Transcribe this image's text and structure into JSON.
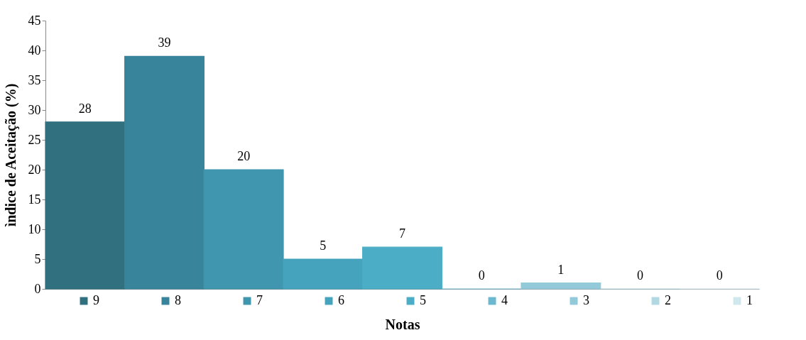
{
  "chart_data": {
    "type": "bar",
    "xlabel": "Notas",
    "ylabel": "ìndice de Aceitação (%)",
    "categories": [
      null,
      null,
      null,
      null,
      null,
      null,
      null,
      null,
      null
    ],
    "series": [
      {
        "name": "9",
        "color": "#31707f",
        "values": [
          28,
          null,
          null,
          null,
          null,
          null,
          null,
          null,
          null
        ]
      },
      {
        "name": "8",
        "color": "#38849a",
        "values": [
          null,
          39,
          null,
          null,
          null,
          null,
          null,
          null,
          null
        ]
      },
      {
        "name": "7",
        "color": "#3f96ae",
        "values": [
          null,
          null,
          20,
          null,
          null,
          null,
          null,
          null,
          null
        ]
      },
      {
        "name": "6",
        "color": "#45a3bd",
        "values": [
          null,
          null,
          null,
          5,
          null,
          null,
          null,
          null,
          null
        ]
      },
      {
        "name": "5",
        "color": "#4badc6",
        "values": [
          null,
          null,
          null,
          null,
          7,
          null,
          null,
          null,
          null
        ]
      },
      {
        "name": "4",
        "color": "#6cb9cf",
        "values": [
          null,
          null,
          null,
          null,
          null,
          0,
          null,
          null,
          null
        ]
      },
      {
        "name": "3",
        "color": "#93cad9",
        "values": [
          null,
          null,
          null,
          null,
          null,
          null,
          1,
          null,
          null
        ]
      },
      {
        "name": "2",
        "color": "#b2d8e3",
        "values": [
          null,
          null,
          null,
          null,
          null,
          null,
          null,
          0,
          null
        ]
      },
      {
        "name": "1",
        "color": "#d0e7ee",
        "values": [
          null,
          null,
          null,
          null,
          null,
          null,
          null,
          null,
          0
        ]
      }
    ],
    "ylim": [
      0,
      45
    ],
    "yticks": [
      0,
      5,
      10,
      15,
      20,
      25,
      30,
      35,
      40,
      45
    ],
    "data_labels": true,
    "legend": "bottom",
    "tick_labels": "y"
  }
}
